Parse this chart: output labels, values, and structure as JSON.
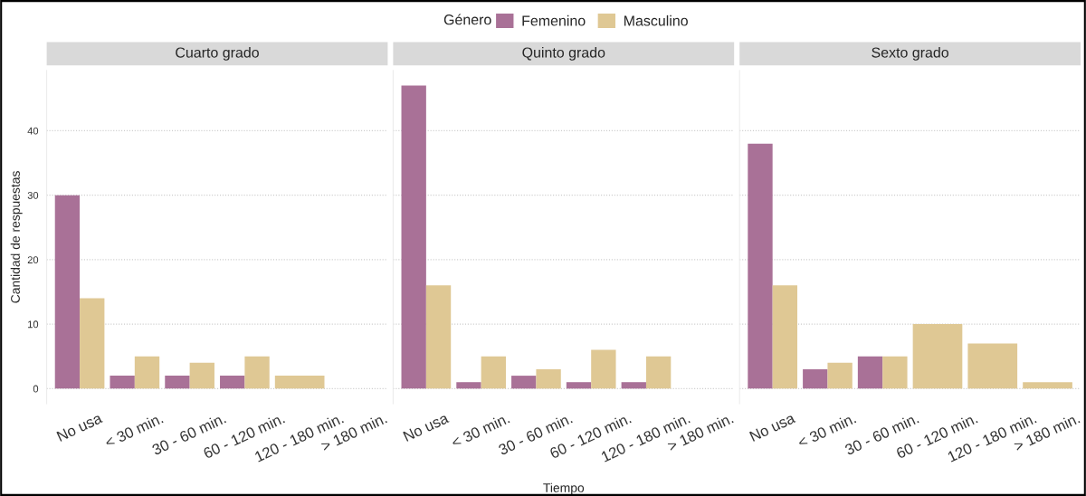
{
  "chart_data": [
    {
      "type": "bar",
      "title": "Cuarto grado",
      "ylabel": "Cantidad de respuestas",
      "legend_title": "Género",
      "legend": "top",
      "grid": "y",
      "categories": [
        "No usa",
        "< 30 min.",
        "30 - 60 min.",
        "60 - 120 min.",
        "120 - 180 min.",
        "> 180 min."
      ],
      "ylim": [
        -2.35,
        49.35
      ],
      "yticks": [
        0,
        10,
        20,
        30,
        40
      ],
      "series": [
        {
          "name": "Femenino",
          "color": "#a97197",
          "values": [
            30,
            2,
            2,
            2,
            null,
            null
          ]
        },
        {
          "name": "Masculino",
          "color": "#dfc894",
          "values": [
            14,
            5,
            4,
            5,
            2,
            null
          ]
        }
      ]
    },
    {
      "type": "bar",
      "title": "Quinto grado",
      "xlabel": "Tiempo",
      "grid": "y",
      "tick_labels": "x",
      "categories": [
        "No usa",
        "< 30 min.",
        "30 - 60 min.",
        "60 - 120 min.",
        "120 - 180 min.",
        "> 180 min."
      ],
      "ylim": [
        -2.35,
        49.35
      ],
      "yticks": [
        0,
        10,
        20,
        30,
        40
      ],
      "series": [
        {
          "color": "#a97197",
          "values": [
            47,
            1,
            2,
            1,
            1,
            null
          ]
        },
        {
          "color": "#dfc894",
          "values": [
            16,
            5,
            3,
            6,
            5,
            null
          ]
        }
      ]
    },
    {
      "type": "bar",
      "title": "Sexto grado",
      "grid": "y",
      "tick_labels": "x",
      "categories": [
        "No usa",
        "< 30 min.",
        "30 - 60 min.",
        "60 - 120 min.",
        "120 - 180 min.",
        "> 180 min."
      ],
      "ylim": [
        -2.35,
        49.35
      ],
      "yticks": [
        0,
        10,
        20,
        30,
        40
      ],
      "series": [
        {
          "color": "#a97197",
          "values": [
            38,
            3,
            5,
            null,
            null,
            null
          ]
        },
        {
          "color": "#dfc894",
          "values": [
            16,
            4,
            5,
            10,
            7,
            1
          ]
        }
      ]
    }
  ]
}
